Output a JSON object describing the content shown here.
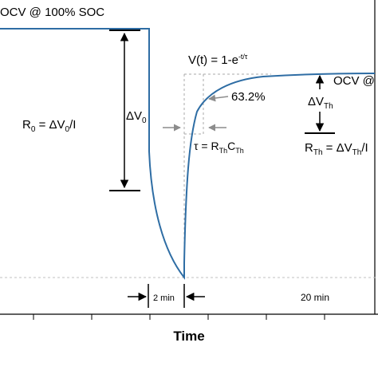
{
  "labels": {
    "ocv_full": "OCV @ 100% SOC",
    "ocv_right": "OCV @",
    "r0_main": "R",
    "r0_sub": "0",
    "r0_eq_a": " = ΔV",
    "r0_eq_sub": "0",
    "r0_eq_b": "/I",
    "dv0_main": "ΔV",
    "dv0_sub": "0",
    "vt_main": "V(t) = 1-e",
    "vt_sup": "-t/τ",
    "pct": "63.2%",
    "tau_a": "τ  = R",
    "tau_sub1": "Th",
    "tau_b": "C",
    "tau_sub2": "Th",
    "dvth_main": "ΔV",
    "dvth_sub": "Th",
    "rth_a": "R",
    "rth_sub1": "Th",
    "rth_b": " = ΔV",
    "rth_sub2": "Th",
    "rth_c": "/I",
    "two_min": "2 min",
    "twenty_min": "20 min",
    "xlabel": "Time"
  },
  "colors": {
    "curve": "#2e6da4",
    "axis": "#000000",
    "guide": "#a8a8a8",
    "gray_arrow": "#8c8c8c"
  }
}
